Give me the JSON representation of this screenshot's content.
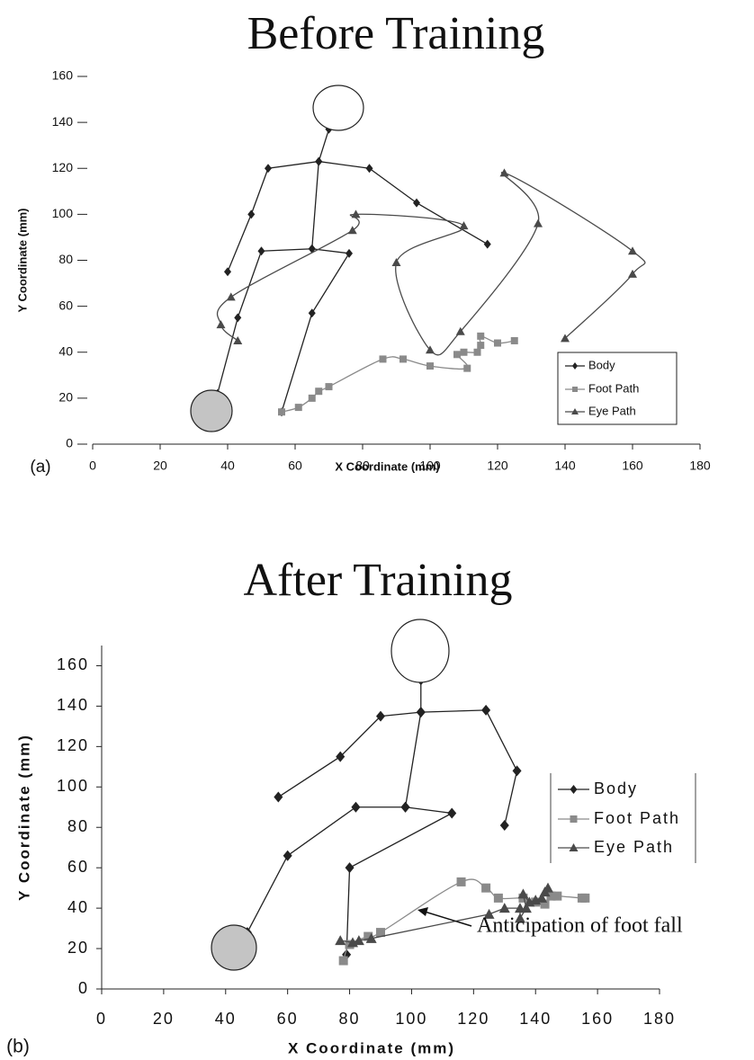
{
  "chart_data": [
    {
      "type": "line",
      "title": "Before Training",
      "panel_label": "(a)",
      "x_label": "X Coordinate (mm)",
      "y_label": "Y Coordinate (mm)",
      "xlim": [
        0,
        180
      ],
      "xticks": [
        0,
        20,
        40,
        60,
        80,
        100,
        120,
        140,
        160,
        180
      ],
      "ylim": [
        0,
        160
      ],
      "yticks": [
        0,
        20,
        40,
        60,
        80,
        100,
        120,
        140,
        160
      ],
      "legend": "lower right",
      "series": [
        {
          "name": "Body",
          "color": "#222222",
          "marker": "diamond",
          "smooth": false,
          "x": [
            40,
            47,
            52,
            67,
            82,
            96,
            117,
            null,
            70,
            67,
            65,
            50,
            43,
            37,
            null,
            65,
            76,
            65,
            56
          ],
          "values": [
            75,
            100,
            120,
            123,
            120,
            105,
            87,
            null,
            137,
            123,
            85,
            84,
            55,
            22,
            null,
            85,
            83,
            57,
            14
          ]
        },
        {
          "name": "Foot Path",
          "color": "#8a8a8a",
          "marker": "square",
          "smooth": true,
          "x": [
            56,
            61,
            65,
            67,
            70,
            86,
            92,
            100,
            111,
            108,
            110,
            114,
            115,
            115,
            120,
            125
          ],
          "values": [
            14,
            16,
            20,
            23,
            25,
            37,
            37,
            34,
            33,
            39,
            40,
            40,
            43,
            47,
            44,
            45
          ]
        },
        {
          "name": "Eye Path",
          "color": "#4a4a4a",
          "marker": "triangle",
          "smooth": true,
          "x": [
            43,
            38,
            41,
            77,
            78,
            110,
            90,
            100,
            109,
            132,
            122,
            160,
            160,
            140
          ],
          "values": [
            45,
            52,
            64,
            93,
            100,
            95,
            79,
            41,
            49,
            96,
            118,
            84,
            74,
            46
          ]
        }
      ]
    },
    {
      "type": "line",
      "title": "After Training",
      "panel_label": "(b)",
      "x_label": "X Coordinate (mm)",
      "y_label": "Y Coordinate (mm)",
      "xlim": [
        0,
        180
      ],
      "xticks": [
        0,
        20,
        40,
        60,
        80,
        100,
        120,
        140,
        160,
        180
      ],
      "ylim": [
        0,
        170
      ],
      "yticks": [
        0,
        20,
        40,
        60,
        80,
        100,
        120,
        140,
        160
      ],
      "legend": "right",
      "annotations": [
        "Anticipation of foot fall"
      ],
      "series": [
        {
          "name": "Body",
          "color": "#222222",
          "marker": "diamond",
          "smooth": false,
          "x": [
            57,
            77,
            90,
            103,
            124,
            134,
            130,
            null,
            103,
            103,
            98,
            82,
            60,
            47,
            null,
            98,
            113,
            80,
            79
          ],
          "values": [
            95,
            115,
            135,
            137,
            138,
            108,
            81,
            null,
            153,
            137,
            90,
            90,
            66,
            28,
            null,
            90,
            87,
            60,
            17
          ]
        },
        {
          "name": "Foot Path",
          "color": "#8a8a8a",
          "marker": "square",
          "smooth": true,
          "x": [
            78,
            80,
            86,
            90,
            116,
            124,
            128,
            136,
            140,
            143,
            145,
            147,
            155,
            156
          ],
          "values": [
            14,
            22,
            26,
            28,
            53,
            50,
            45,
            45,
            43,
            42,
            46,
            46,
            45,
            45
          ]
        },
        {
          "name": "Eye Path",
          "color": "#4a4a4a",
          "marker": "triangle",
          "smooth": false,
          "x": [
            77,
            81,
            83,
            87,
            125,
            130,
            135,
            135,
            137,
            136,
            138,
            140,
            142,
            143,
            144
          ],
          "values": [
            24,
            23,
            24,
            25,
            37,
            40,
            40,
            35,
            40,
            47,
            43,
            44,
            45,
            48,
            50
          ]
        }
      ]
    }
  ]
}
